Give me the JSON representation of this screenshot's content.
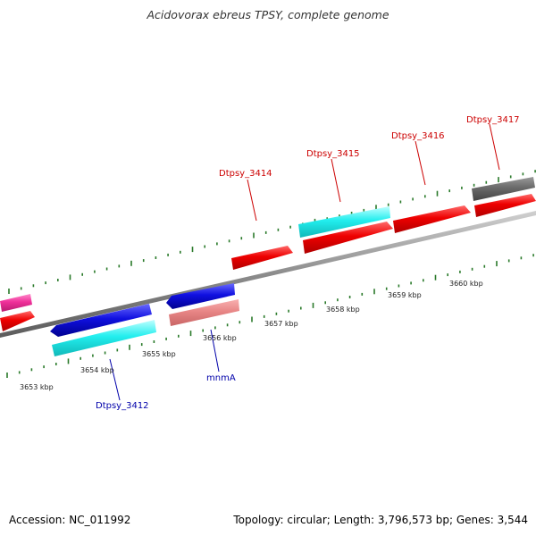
{
  "title": "Acidovorax ebreus TPSY, complete genome",
  "footer": {
    "accession": "Accession: NC_011992",
    "summary": "Topology: circular; Length: 3,796,573 bp; Genes: 3,544"
  },
  "colors": {
    "forward_label": "#cc0000",
    "reverse_label": "#0000aa",
    "tick": "#2a7a2a",
    "backbone": "#8c8c8c"
  },
  "scale_labels": [
    "3653 kbp",
    "3654 kbp",
    "3655 kbp",
    "3656 kbp",
    "3657 kbp",
    "3658 kbp",
    "3659 kbp",
    "3660 kbp"
  ],
  "gene_labels": [
    {
      "name": "Dtpsy_3414",
      "strand": "forward"
    },
    {
      "name": "Dtpsy_3415",
      "strand": "forward"
    },
    {
      "name": "Dtpsy_3416",
      "strand": "forward"
    },
    {
      "name": "Dtpsy_3417",
      "strand": "forward"
    },
    {
      "name": "Dtpsy_3412",
      "strand": "reverse"
    },
    {
      "name": "mnmA",
      "strand": "reverse"
    }
  ]
}
